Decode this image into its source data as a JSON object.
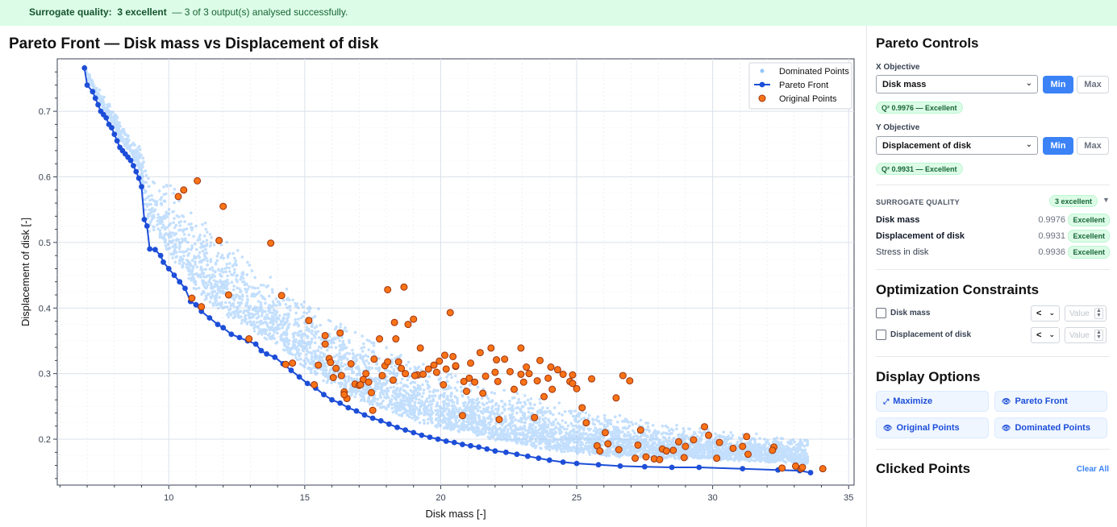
{
  "banner": {
    "label": "Surrogate quality:",
    "value": "3 excellent",
    "message": "— 3 of 3 output(s) analysed successfully."
  },
  "chart_data": {
    "type": "scatter",
    "title": "Pareto Front — Disk mass vs Displacement of disk",
    "xlabel": "Disk mass [-]",
    "ylabel": "Displacement of disk [-]",
    "xlim": [
      5.9,
      35.2
    ],
    "ylim": [
      0.13,
      0.78
    ],
    "xticks": [
      10,
      15,
      20,
      25,
      30,
      35
    ],
    "yticks": [
      0.2,
      0.3,
      0.4,
      0.5,
      0.6,
      0.7
    ],
    "legend": [
      "Dominated Points",
      "Pareto Front",
      "Original Points"
    ],
    "legend_position": "top-right",
    "colors": {
      "dominated": "#93c5fd",
      "pareto": "#1d4ed8",
      "original_fill": "#f97316",
      "original_edge": "#9a3412"
    },
    "pareto_front": [
      [
        6.9,
        0.766
      ],
      [
        7.0,
        0.74
      ],
      [
        7.2,
        0.73
      ],
      [
        7.3,
        0.72
      ],
      [
        7.4,
        0.71
      ],
      [
        7.5,
        0.7
      ],
      [
        7.6,
        0.695
      ],
      [
        7.7,
        0.69
      ],
      [
        7.8,
        0.68
      ],
      [
        7.9,
        0.675
      ],
      [
        8.0,
        0.665
      ],
      [
        8.1,
        0.655
      ],
      [
        8.2,
        0.645
      ],
      [
        8.3,
        0.64
      ],
      [
        8.4,
        0.635
      ],
      [
        8.5,
        0.63
      ],
      [
        8.6,
        0.625
      ],
      [
        8.7,
        0.617
      ],
      [
        8.8,
        0.608
      ],
      [
        8.9,
        0.598
      ],
      [
        9.0,
        0.585
      ],
      [
        9.1,
        0.535
      ],
      [
        9.2,
        0.525
      ],
      [
        9.3,
        0.49
      ],
      [
        9.5,
        0.489
      ],
      [
        9.7,
        0.48
      ],
      [
        9.8,
        0.47
      ],
      [
        10.0,
        0.46
      ],
      [
        10.2,
        0.45
      ],
      [
        10.4,
        0.44
      ],
      [
        10.6,
        0.43
      ],
      [
        10.8,
        0.41
      ],
      [
        11.0,
        0.405
      ],
      [
        11.2,
        0.395
      ],
      [
        11.5,
        0.385
      ],
      [
        11.8,
        0.375
      ],
      [
        12.0,
        0.37
      ],
      [
        12.3,
        0.36
      ],
      [
        12.6,
        0.355
      ],
      [
        12.9,
        0.35
      ],
      [
        13.2,
        0.345
      ],
      [
        13.4,
        0.335
      ],
      [
        13.6,
        0.33
      ],
      [
        13.9,
        0.325
      ],
      [
        14.2,
        0.315
      ],
      [
        14.5,
        0.305
      ],
      [
        14.8,
        0.295
      ],
      [
        15.1,
        0.285
      ],
      [
        15.4,
        0.278
      ],
      [
        15.7,
        0.268
      ],
      [
        16.0,
        0.26
      ],
      [
        16.3,
        0.255
      ],
      [
        16.6,
        0.248
      ],
      [
        16.9,
        0.243
      ],
      [
        17.2,
        0.237
      ],
      [
        17.5,
        0.232
      ],
      [
        17.8,
        0.228
      ],
      [
        18.1,
        0.223
      ],
      [
        18.4,
        0.218
      ],
      [
        18.7,
        0.214
      ],
      [
        19.0,
        0.21
      ],
      [
        19.3,
        0.206
      ],
      [
        19.6,
        0.203
      ],
      [
        19.9,
        0.2
      ],
      [
        20.2,
        0.197
      ],
      [
        20.5,
        0.195
      ],
      [
        20.8,
        0.192
      ],
      [
        21.1,
        0.19
      ],
      [
        21.4,
        0.188
      ],
      [
        21.7,
        0.185
      ],
      [
        22.0,
        0.182
      ],
      [
        22.4,
        0.18
      ],
      [
        22.8,
        0.177
      ],
      [
        23.2,
        0.174
      ],
      [
        23.6,
        0.171
      ],
      [
        24.0,
        0.168
      ],
      [
        24.5,
        0.165
      ],
      [
        25.0,
        0.163
      ],
      [
        25.8,
        0.161
      ],
      [
        26.6,
        0.159
      ],
      [
        27.5,
        0.158
      ],
      [
        28.5,
        0.157
      ],
      [
        29.5,
        0.157
      ],
      [
        31.1,
        0.155
      ],
      [
        32.4,
        0.153
      ],
      [
        33.2,
        0.152
      ],
      [
        33.6,
        0.149
      ]
    ],
    "original_points": [
      [
        10.35,
        0.57
      ],
      [
        10.55,
        0.58
      ],
      [
        11.05,
        0.594
      ],
      [
        12.0,
        0.555
      ],
      [
        11.85,
        0.503
      ],
      [
        13.75,
        0.499
      ],
      [
        14.15,
        0.419
      ],
      [
        12.2,
        0.42
      ],
      [
        10.85,
        0.415
      ],
      [
        11.2,
        0.402
      ],
      [
        12.95,
        0.353
      ],
      [
        14.3,
        0.314
      ],
      [
        15.15,
        0.381
      ],
      [
        15.35,
        0.283
      ],
      [
        15.5,
        0.313
      ],
      [
        15.75,
        0.345
      ],
      [
        15.9,
        0.323
      ],
      [
        15.95,
        0.317
      ],
      [
        16.05,
        0.294
      ],
      [
        16.15,
        0.308
      ],
      [
        16.3,
        0.362
      ],
      [
        16.45,
        0.272
      ],
      [
        16.55,
        0.262
      ],
      [
        16.7,
        0.315
      ],
      [
        16.85,
        0.284
      ],
      [
        17.0,
        0.282
      ],
      [
        17.15,
        0.291
      ],
      [
        17.35,
        0.287
      ],
      [
        17.45,
        0.271
      ],
      [
        17.5,
        0.244
      ],
      [
        17.55,
        0.322
      ],
      [
        17.75,
        0.353
      ],
      [
        17.85,
        0.297
      ],
      [
        17.95,
        0.312
      ],
      [
        18.05,
        0.318
      ],
      [
        18.25,
        0.29
      ],
      [
        18.3,
        0.378
      ],
      [
        18.45,
        0.318
      ],
      [
        18.55,
        0.308
      ],
      [
        18.7,
        0.3
      ],
      [
        18.8,
        0.375
      ],
      [
        19.0,
        0.383
      ],
      [
        19.15,
        0.298
      ],
      [
        19.35,
        0.299
      ],
      [
        19.55,
        0.307
      ],
      [
        19.75,
        0.313
      ],
      [
        19.95,
        0.319
      ],
      [
        20.1,
        0.283
      ],
      [
        20.2,
        0.307
      ],
      [
        20.35,
        0.393
      ],
      [
        20.45,
        0.326
      ],
      [
        20.55,
        0.311
      ],
      [
        20.8,
        0.236
      ],
      [
        20.85,
        0.288
      ],
      [
        20.95,
        0.273
      ],
      [
        21.1,
        0.316
      ],
      [
        21.25,
        0.287
      ],
      [
        21.45,
        0.332
      ],
      [
        21.65,
        0.296
      ],
      [
        21.85,
        0.339
      ],
      [
        22.0,
        0.302
      ],
      [
        22.1,
        0.288
      ],
      [
        22.15,
        0.23
      ],
      [
        22.35,
        0.322
      ],
      [
        22.55,
        0.303
      ],
      [
        22.7,
        0.276
      ],
      [
        22.95,
        0.299
      ],
      [
        23.05,
        0.287
      ],
      [
        23.25,
        0.3
      ],
      [
        23.45,
        0.233
      ],
      [
        23.55,
        0.289
      ],
      [
        23.8,
        0.265
      ],
      [
        23.95,
        0.293
      ],
      [
        24.1,
        0.276
      ],
      [
        24.3,
        0.306
      ],
      [
        24.5,
        0.299
      ],
      [
        24.75,
        0.288
      ],
      [
        24.85,
        0.285
      ],
      [
        25.0,
        0.277
      ],
      [
        25.2,
        0.248
      ],
      [
        25.35,
        0.225
      ],
      [
        25.55,
        0.292
      ],
      [
        25.75,
        0.19
      ],
      [
        25.85,
        0.182
      ],
      [
        26.15,
        0.193
      ],
      [
        26.45,
        0.263
      ],
      [
        26.7,
        0.297
      ],
      [
        26.95,
        0.289
      ],
      [
        27.15,
        0.171
      ],
      [
        27.35,
        0.214
      ],
      [
        27.55,
        0.173
      ],
      [
        27.85,
        0.17
      ],
      [
        28.05,
        0.169
      ],
      [
        28.15,
        0.185
      ],
      [
        28.3,
        0.182
      ],
      [
        28.55,
        0.183
      ],
      [
        28.75,
        0.196
      ],
      [
        29.0,
        0.189
      ],
      [
        29.3,
        0.199
      ],
      [
        29.7,
        0.219
      ],
      [
        29.85,
        0.206
      ],
      [
        30.15,
        0.171
      ],
      [
        30.25,
        0.195
      ],
      [
        30.75,
        0.186
      ],
      [
        31.25,
        0.204
      ],
      [
        31.3,
        0.177
      ],
      [
        32.25,
        0.188
      ],
      [
        32.55,
        0.156
      ],
      [
        33.25,
        0.155
      ],
      [
        33.3,
        0.157
      ],
      [
        34.05,
        0.155
      ],
      [
        14.55,
        0.316
      ],
      [
        15.75,
        0.358
      ],
      [
        16.45,
        0.268
      ],
      [
        17.05,
        0.283
      ],
      [
        18.05,
        0.428
      ],
      [
        18.65,
        0.432
      ],
      [
        19.05,
        0.297
      ],
      [
        19.85,
        0.302
      ],
      [
        20.55,
        0.312
      ],
      [
        21.55,
        0.27
      ],
      [
        22.05,
        0.321
      ],
      [
        22.95,
        0.339
      ],
      [
        23.15,
        0.31
      ],
      [
        23.65,
        0.32
      ],
      [
        24.05,
        0.31
      ],
      [
        24.85,
        0.298
      ],
      [
        26.05,
        0.21
      ],
      [
        26.55,
        0.184
      ],
      [
        27.25,
        0.191
      ],
      [
        28.95,
        0.172
      ],
      [
        31.1,
        0.189
      ],
      [
        32.2,
        0.183
      ],
      [
        33.05,
        0.159
      ],
      [
        16.35,
        0.297
      ],
      [
        17.25,
        0.3
      ],
      [
        18.35,
        0.353
      ],
      [
        19.25,
        0.339
      ],
      [
        20.15,
        0.328
      ],
      [
        21.05,
        0.293
      ]
    ],
    "dominated_points_note": "dense cloud of sampled designs between the Pareto front and an upper bound curve"
  },
  "sidebar": {
    "pareto_title": "Pareto Controls",
    "x_label": "X Objective",
    "x_value": "Disk mass",
    "x_quality": "Q² 0.9976 — Excellent",
    "y_label": "Y Objective",
    "y_value": "Displacement of disk",
    "y_quality": "Q² 0.9931 — Excellent",
    "min_label": "Min",
    "max_label": "Max",
    "sq_title": "SURROGATE QUALITY",
    "sq_badge": "3 excellent",
    "sq_toggle": "▼",
    "sq_rows": [
      {
        "name": "Disk mass",
        "value": "0.9976",
        "tag": "Excellent"
      },
      {
        "name": "Displacement of disk",
        "value": "0.9931",
        "tag": "Excellent"
      },
      {
        "name": "Stress in disk",
        "value": "0.9936",
        "tag": "Excellent"
      }
    ],
    "constraints_title": "Optimization Constraints",
    "constraints": [
      {
        "name": "Disk mass",
        "op": "<",
        "placeholder": "Value"
      },
      {
        "name": "Displacement of disk",
        "op": "<",
        "placeholder": "Value"
      }
    ],
    "display_title": "Display Options",
    "display_buttons": [
      "Maximize",
      "Pareto Front",
      "Original Points",
      "Dominated Points"
    ],
    "clicked_title": "Clicked Points",
    "clear_label": "Clear All"
  }
}
